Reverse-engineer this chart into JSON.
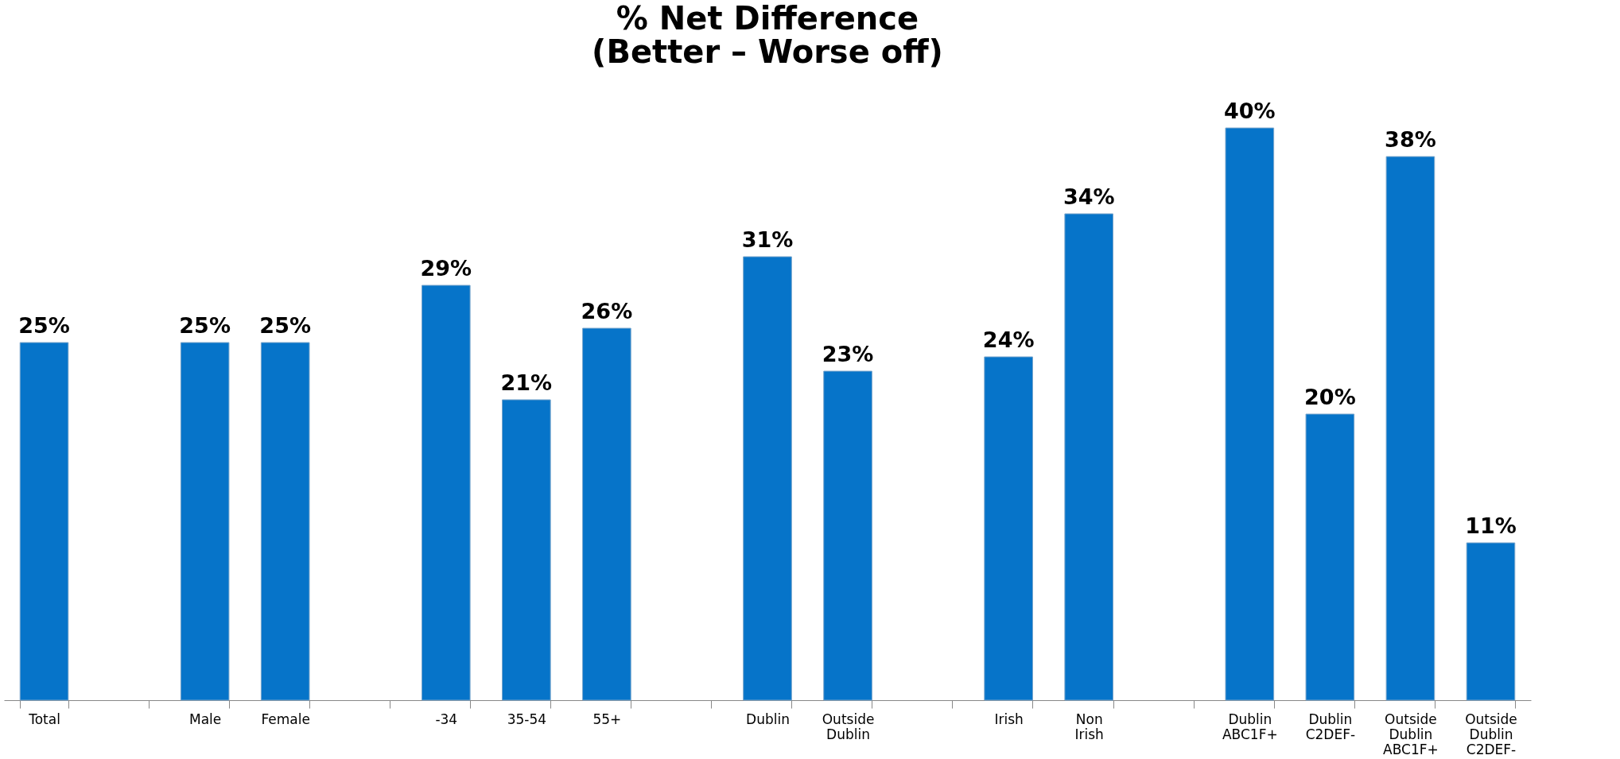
{
  "chart_data": {
    "type": "bar",
    "title": [
      "% Net Difference",
      "(Better – Worse off)"
    ],
    "categories": [
      "Total",
      null,
      "Male",
      "Female",
      null,
      "-34",
      "35-54",
      "55+",
      null,
      "Dublin",
      "Outside Dublin",
      null,
      "Irish",
      "Non Irish",
      null,
      "Dublin ABC1F+",
      "Dublin C2DEF-",
      "Outside Dublin ABC1F+",
      "Outside Dublin C2DEF-"
    ],
    "values": [
      25,
      null,
      25,
      25,
      null,
      29,
      21,
      26,
      null,
      31,
      23,
      null,
      24,
      34,
      null,
      40,
      20,
      38,
      11
    ],
    "value_labels": [
      "25%",
      null,
      "25%",
      "25%",
      null,
      "29%",
      "21%",
      "26%",
      null,
      "31%",
      "23%",
      null,
      "24%",
      "34%",
      null,
      "40%",
      "20%",
      "38%",
      "11%"
    ],
    "color": "#0674c9",
    "grid": false
  }
}
